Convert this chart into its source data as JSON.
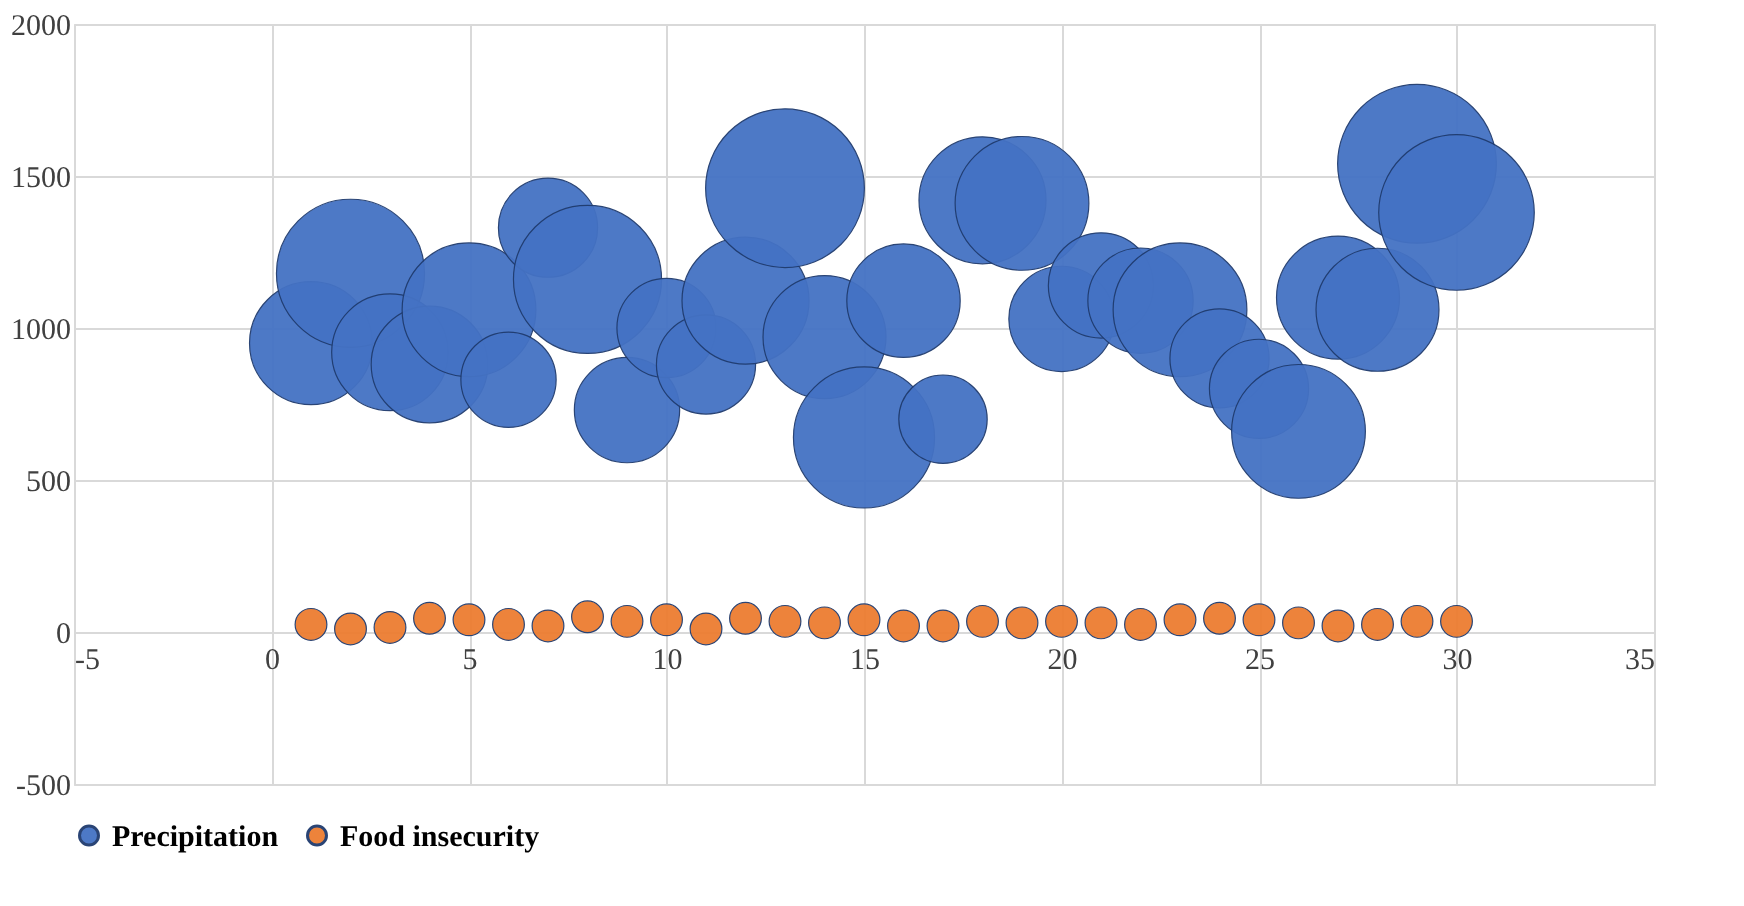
{
  "chart_data": {
    "type": "bubble",
    "x": [
      1,
      2,
      3,
      4,
      5,
      6,
      7,
      8,
      9,
      10,
      11,
      12,
      13,
      14,
      15,
      16,
      17,
      18,
      19,
      20,
      21,
      22,
      23,
      24,
      25,
      26,
      27,
      28,
      29,
      30
    ],
    "series": [
      {
        "name": "Precipitation",
        "color": "#4472c4",
        "values": [
          950,
          1180,
          920,
          880,
          1060,
          830,
          1330,
          1160,
          730,
          1000,
          880,
          1090,
          1460,
          970,
          640,
          1090,
          700,
          1420,
          1410,
          1030,
          1140,
          1090,
          1060,
          900,
          800,
          660,
          1100,
          1060,
          1540,
          1380
        ],
        "sizes": [
          0.6,
          0.87,
          0.54,
          0.54,
          0.71,
          0.36,
          0.39,
          0.87,
          0.44,
          0.39,
          0.39,
          0.64,
          1,
          0.6,
          0.79,
          0.51,
          0.31,
          0.64,
          0.71,
          0.44,
          0.44,
          0.44,
          0.71,
          0.39,
          0.39,
          0.71,
          0.6,
          0.6,
          1,
          0.96
        ]
      },
      {
        "name": "Food insecurity",
        "color": "#ed7d31",
        "values": [
          25,
          10,
          15,
          45,
          40,
          25,
          20,
          50,
          35,
          40,
          10,
          45,
          35,
          30,
          40,
          20,
          20,
          35,
          30,
          35,
          30,
          25,
          40,
          45,
          40,
          30,
          20,
          25,
          35,
          35
        ],
        "sizes": [
          0.04,
          0.04,
          0.04,
          0.04,
          0.04,
          0.04,
          0.04,
          0.04,
          0.04,
          0.04,
          0.04,
          0.04,
          0.04,
          0.04,
          0.04,
          0.04,
          0.04,
          0.04,
          0.04,
          0.04,
          0.04,
          0.04,
          0.04,
          0.04,
          0.04,
          0.04,
          0.04,
          0.04,
          0.04,
          0.04
        ]
      }
    ],
    "xlim": [
      -5,
      35
    ],
    "xticks": [
      -5,
      0,
      5,
      10,
      15,
      20,
      25,
      30,
      35
    ],
    "ylim": [
      -500,
      2000
    ],
    "yticks": [
      -500,
      0,
      500,
      1000,
      1500,
      2000
    ],
    "grid": true,
    "legend": "bottom"
  }
}
